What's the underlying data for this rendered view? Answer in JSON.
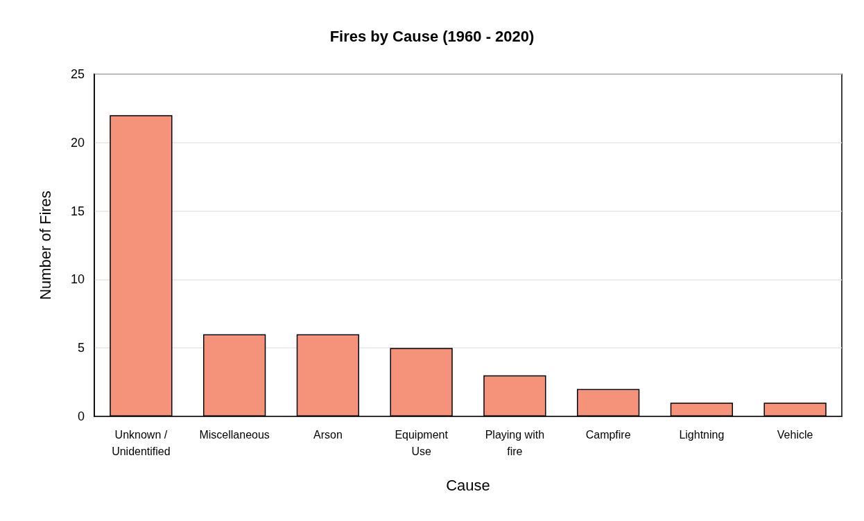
{
  "chart_data": {
    "type": "bar",
    "title": "Fires by Cause (1960 - 2020)",
    "xlabel": "Cause",
    "ylabel": "Number of Fires",
    "categories": [
      "Unknown /\nUnidentified",
      "Miscellaneous",
      "Arson",
      "Equipment\nUse",
      "Playing with\nfire",
      "Campfire",
      "Lightning",
      "Vehicle"
    ],
    "values": [
      22,
      6,
      6,
      5,
      3,
      2,
      1,
      1
    ],
    "color": "#f4937a",
    "ylim": [
      0,
      25
    ],
    "yticks": [
      0,
      5,
      10,
      15,
      20,
      25
    ],
    "grid": "y"
  }
}
